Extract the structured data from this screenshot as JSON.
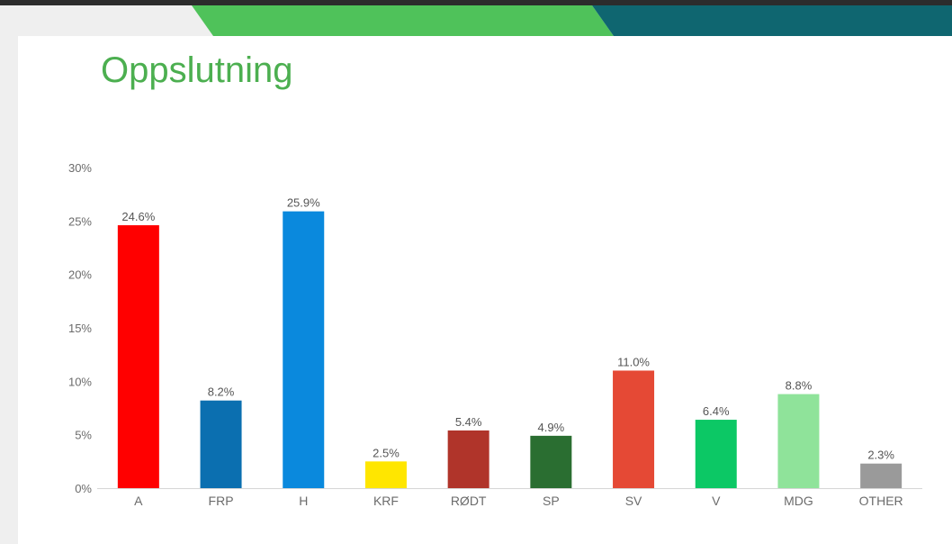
{
  "title": "Oppslutning",
  "colors": {
    "banner_green": "#4fc25a",
    "banner_teal": "#0f6670",
    "title": "#4caf50",
    "axis_text": "#6b6b6b",
    "label_text": "#555555"
  },
  "chart_data": {
    "type": "bar",
    "title": "",
    "xlabel": "",
    "ylabel": "",
    "ylim": [
      0,
      30
    ],
    "yticks": [
      0,
      5,
      10,
      15,
      20,
      25,
      30
    ],
    "ytick_labels": [
      "0%",
      "5%",
      "10%",
      "15%",
      "20%",
      "25%",
      "30%"
    ],
    "grid": false,
    "legend": "none",
    "categories": [
      "A",
      "FRP",
      "H",
      "KRF",
      "RØDT",
      "SP",
      "SV",
      "V",
      "MDG",
      "OTHER"
    ],
    "values": [
      24.6,
      8.2,
      25.9,
      2.5,
      5.4,
      4.9,
      11.0,
      6.4,
      8.8,
      2.3
    ],
    "value_labels": [
      "24.6%",
      "8.2%",
      "25.9%",
      "2.5%",
      "5.4%",
      "4.9%",
      "11.0%",
      "6.4%",
      "8.8%",
      "2.3%"
    ],
    "bar_colors": [
      "#ff0000",
      "#0b6fb0",
      "#0a89dd",
      "#ffe600",
      "#b0342a",
      "#2a6e31",
      "#e54935",
      "#0cc865",
      "#8fe39a",
      "#9a9a9a"
    ]
  }
}
